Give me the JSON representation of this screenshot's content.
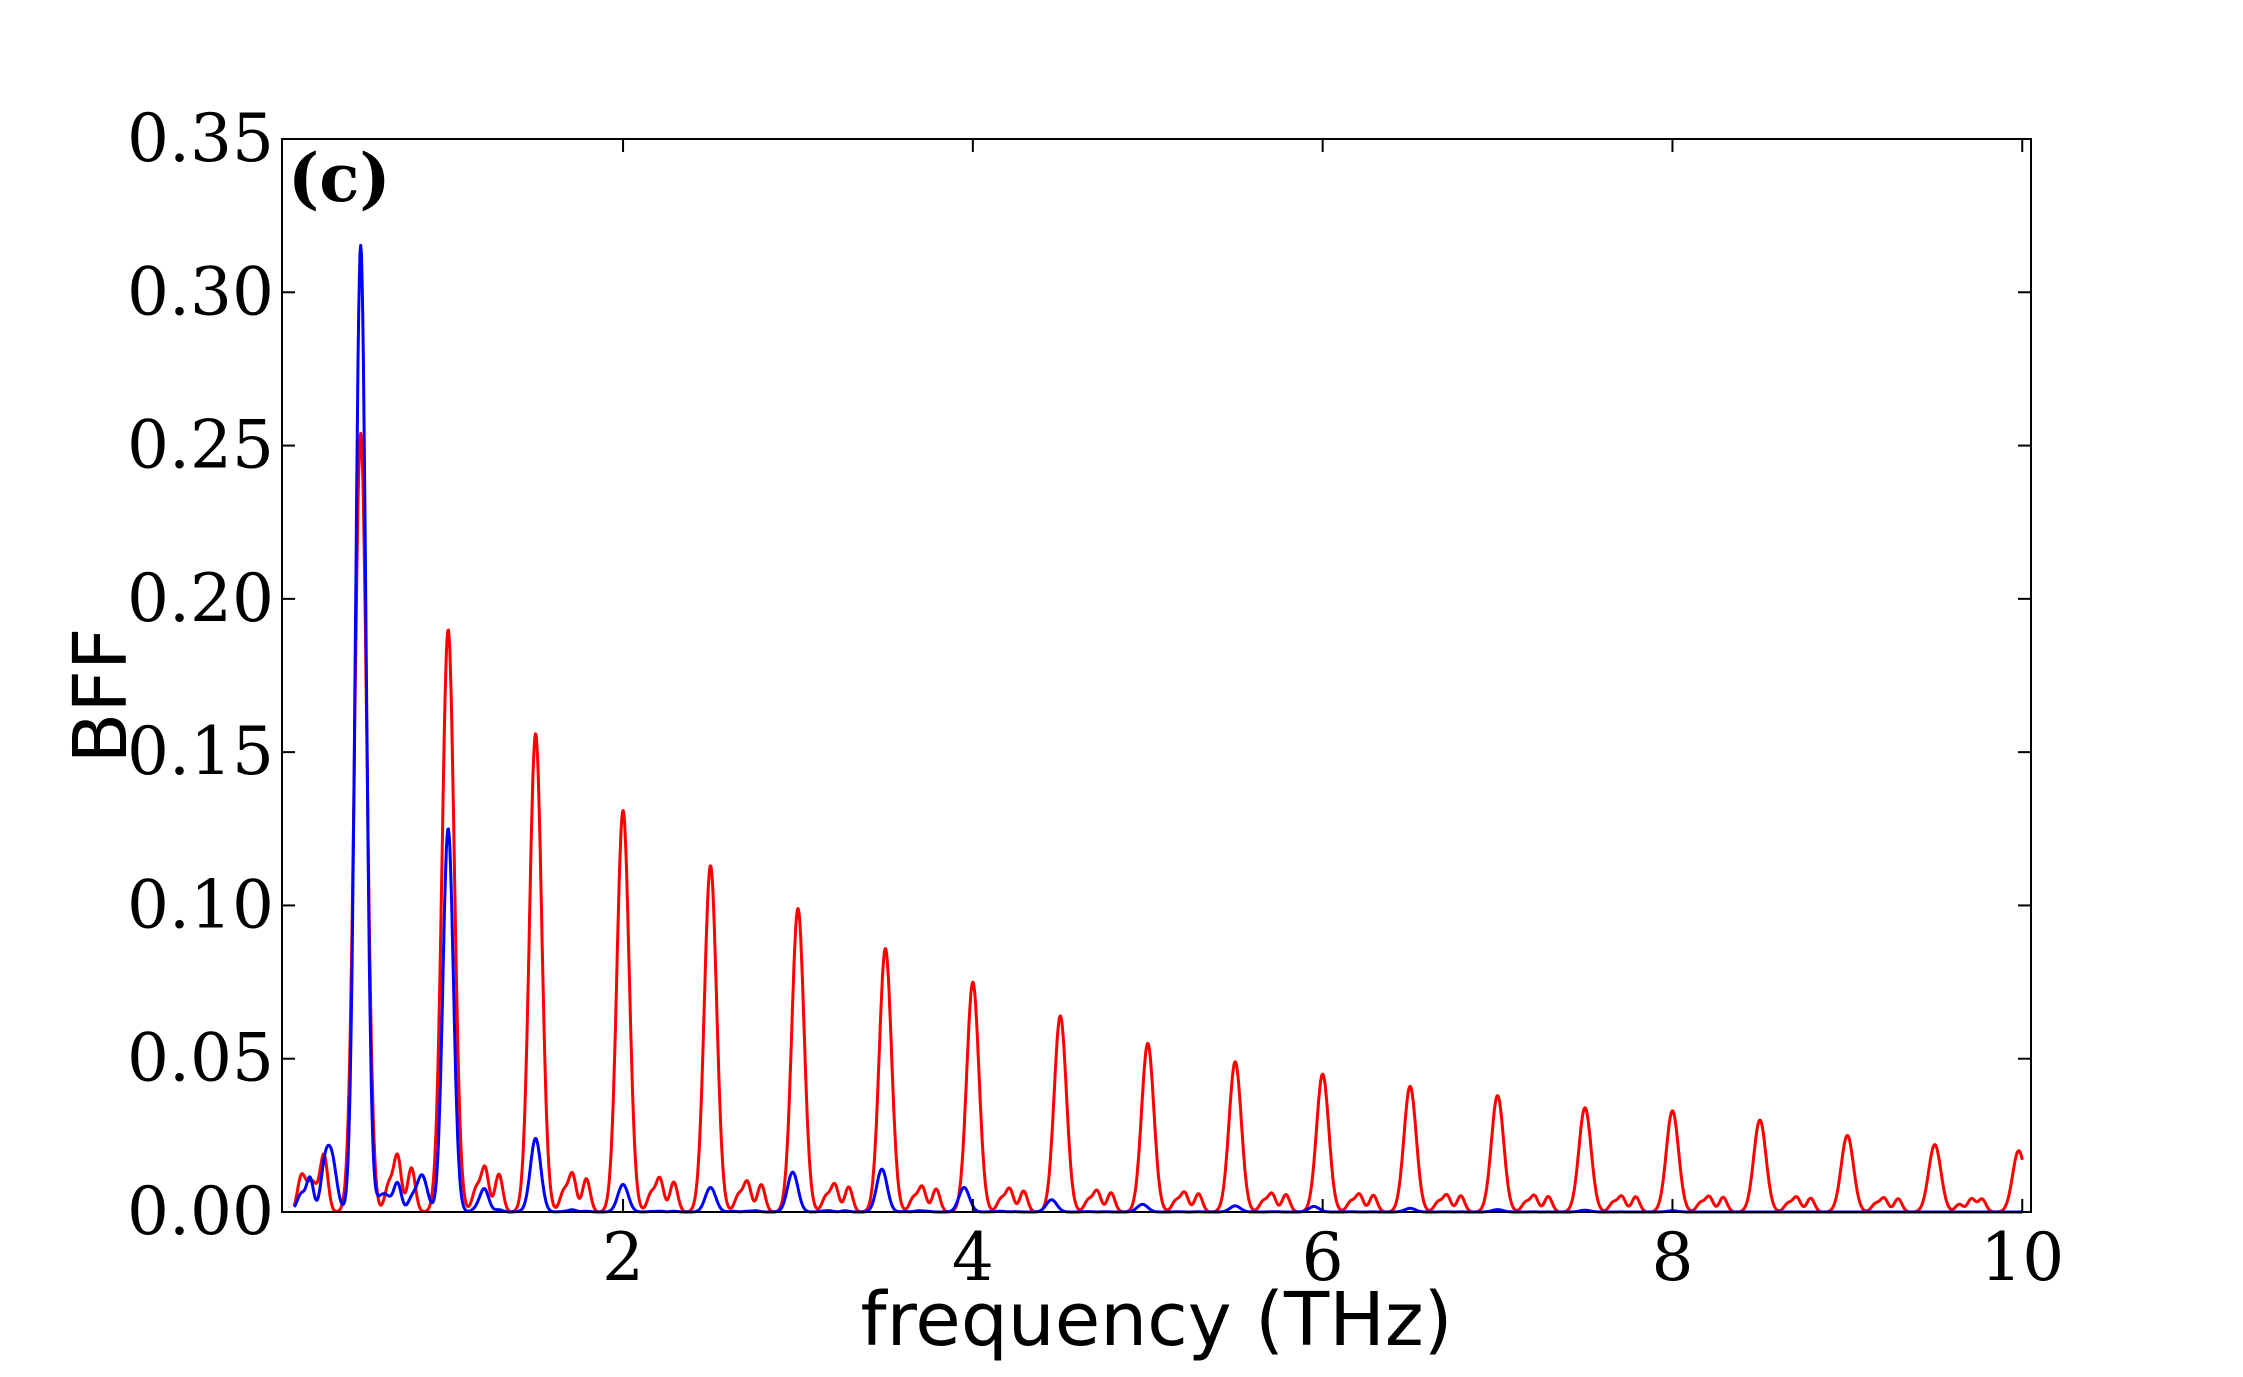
{
  "chart_data": {
    "type": "line",
    "panel_label": "(c)",
    "xlabel": "frequency (THz)",
    "ylabel": "BFF",
    "xlim": [
      0.05,
      10.05
    ],
    "ylim": [
      0,
      0.35
    ],
    "x_ticks": [
      2,
      4,
      6,
      8,
      10
    ],
    "x_tick_labels": [
      "2",
      "4",
      "6",
      "8",
      "10"
    ],
    "y_ticks": [
      0,
      0.05,
      0.1,
      0.15,
      0.2,
      0.25,
      0.3,
      0.35
    ],
    "y_tick_labels": [
      "0.00",
      "0.05",
      "0.10",
      "0.15",
      "0.20",
      "0.25",
      "0.30",
      "0.35"
    ],
    "grid": false,
    "legend": "none",
    "series": [
      {
        "color": "#ff0000",
        "fundamental_thz": 0.5,
        "peaks": [
          {
            "x": 0.5,
            "y": 0.254
          },
          {
            "x": 1.0,
            "y": 0.19
          },
          {
            "x": 1.5,
            "y": 0.156
          },
          {
            "x": 2.0,
            "y": 0.131
          },
          {
            "x": 2.5,
            "y": 0.113
          },
          {
            "x": 3.0,
            "y": 0.099
          },
          {
            "x": 3.5,
            "y": 0.086
          },
          {
            "x": 4.0,
            "y": 0.075
          },
          {
            "x": 4.5,
            "y": 0.064
          },
          {
            "x": 5.0,
            "y": 0.055
          },
          {
            "x": 5.5,
            "y": 0.049
          },
          {
            "x": 6.0,
            "y": 0.045
          },
          {
            "x": 6.5,
            "y": 0.041
          },
          {
            "x": 7.0,
            "y": 0.038
          },
          {
            "x": 7.5,
            "y": 0.034
          },
          {
            "x": 8.0,
            "y": 0.033
          },
          {
            "x": 8.5,
            "y": 0.03
          },
          {
            "x": 9.0,
            "y": 0.025
          },
          {
            "x": 9.5,
            "y": 0.022
          },
          {
            "x": 9.98,
            "y": 0.02
          }
        ]
      },
      {
        "color": "#0000ff",
        "fundamental_thz": 0.5,
        "peaks": [
          {
            "x": 0.33,
            "y": 0.019
          },
          {
            "x": 0.5,
            "y": 0.315
          },
          {
            "x": 0.85,
            "y": 0.012
          },
          {
            "x": 1.0,
            "y": 0.125
          },
          {
            "x": 1.2,
            "y": 0.004
          },
          {
            "x": 1.5,
            "y": 0.024
          },
          {
            "x": 2.0,
            "y": 0.009
          },
          {
            "x": 2.5,
            "y": 0.008
          },
          {
            "x": 2.97,
            "y": 0.013
          },
          {
            "x": 3.48,
            "y": 0.014
          },
          {
            "x": 3.95,
            "y": 0.008
          },
          {
            "x": 4.45,
            "y": 0.004
          },
          {
            "x": 4.97,
            "y": 0.0025
          },
          {
            "x": 5.5,
            "y": 0.002
          },
          {
            "x": 5.95,
            "y": 0.0018
          },
          {
            "x": 6.5,
            "y": 0.0012
          },
          {
            "x": 7.0,
            "y": 0.0008
          },
          {
            "x": 7.5,
            "y": 0.0006
          },
          {
            "x": 8.0,
            "y": 0.0004
          }
        ]
      }
    ]
  }
}
